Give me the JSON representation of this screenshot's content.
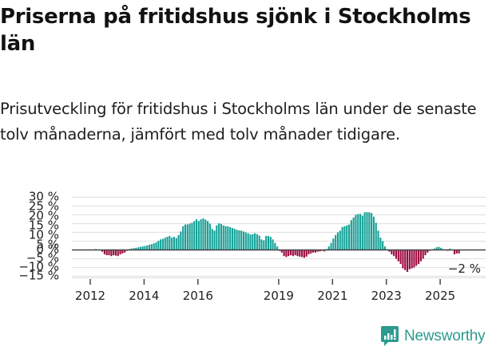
{
  "header": {
    "title": "Priserna på fritidshus sjönk i Stockholms län",
    "subtitle": "Prisutveckling för fritidshus i Stockholms län under de senaste tolv månaderna, jämfört med tolv månader tidigare."
  },
  "brand": {
    "name": "Newsworthy",
    "color": "#2c9a8e"
  },
  "colors": {
    "positive": "#15a197",
    "negative": "#9b0a3f",
    "zero_line": "#444444",
    "grid": "#e3e3e3"
  },
  "chart_data": {
    "type": "bar",
    "title": "Priserna på fritidshus sjönk i Stockholms län",
    "xlabel": "",
    "ylabel": "",
    "ylim": [
      -15,
      30
    ],
    "yticks": [
      "30 %",
      "25 %",
      "20 %",
      "15 %",
      "10 %",
      "5 %",
      "0 %",
      "−5 %",
      "−10 %",
      "−15 %"
    ],
    "ytick_values": [
      30,
      25,
      20,
      15,
      10,
      5,
      0,
      -5,
      -10,
      -15
    ],
    "xticks": [
      "2012",
      "2014",
      "2016",
      "2019",
      "2021",
      "2023",
      "2025"
    ],
    "grid": true,
    "legend": null,
    "annotation": {
      "text": "−2 %",
      "target": "last value"
    },
    "start_month": "2012-03",
    "frequency": "monthly",
    "values": [
      0.5,
      0.3,
      0.0,
      -1.0,
      -2.5,
      -3.0,
      -3.0,
      -3.5,
      -3.0,
      -3.2,
      -3.5,
      -2.5,
      -2.0,
      -1.5,
      -0.5,
      0.5,
      0.8,
      1.0,
      1.2,
      1.5,
      1.8,
      2.0,
      2.3,
      2.6,
      3.0,
      3.3,
      3.8,
      4.3,
      5.2,
      6.0,
      6.3,
      7.0,
      7.5,
      8.0,
      7.0,
      7.5,
      6.8,
      8.5,
      10.5,
      13.5,
      14.5,
      14.6,
      15.0,
      15.5,
      16.5,
      17.5,
      16.5,
      17.5,
      18.0,
      17.3,
      16.5,
      15.0,
      12.0,
      11.0,
      14.0,
      15.2,
      14.8,
      14.0,
      13.5,
      13.5,
      13.0,
      12.5,
      12.0,
      11.5,
      11.2,
      11.0,
      10.5,
      10.0,
      9.5,
      8.8,
      9.0,
      9.5,
      9.0,
      8.2,
      6.0,
      5.5,
      8.0,
      8.0,
      7.5,
      6.0,
      4.0,
      2.0,
      -0.5,
      -1.5,
      -3.5,
      -4.0,
      -3.5,
      -3.0,
      -3.5,
      -3.0,
      -3.5,
      -3.8,
      -4.0,
      -4.5,
      -3.8,
      -2.5,
      -2.0,
      -1.5,
      -1.5,
      -1.0,
      -0.8,
      -0.5,
      -0.8,
      0.5,
      2.0,
      4.0,
      6.5,
      8.5,
      10.0,
      11.0,
      13.0,
      13.5,
      14.0,
      14.5,
      17.0,
      18.5,
      20.0,
      20.5,
      20.5,
      19.5,
      21.5,
      21.5,
      21.5,
      21.0,
      19.0,
      15.5,
      11.0,
      7.0,
      5.0,
      2.0,
      0.5,
      -1.0,
      -2.5,
      -3.5,
      -5.0,
      -6.5,
      -8.0,
      -10.5,
      -11.5,
      -12.5,
      -11.0,
      -10.5,
      -10.0,
      -9.0,
      -8.0,
      -6.5,
      -5.0,
      -3.0,
      -1.5,
      -0.5,
      0.3,
      0.8,
      1.5,
      1.8,
      1.2,
      0.5,
      0.3,
      -0.5,
      0.8,
      0.2,
      -2.5,
      -2.0,
      -2.0
    ]
  }
}
